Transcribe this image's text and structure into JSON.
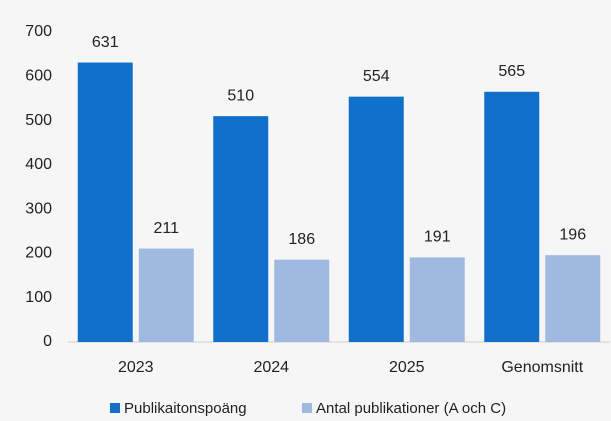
{
  "chart_data": {
    "type": "bar",
    "categories": [
      "2023",
      "2024",
      "2025",
      "Genomsnitt"
    ],
    "series": [
      {
        "name": "Publikaitonspoäng",
        "color": "#1170c9",
        "values": [
          631,
          510,
          554,
          565
        ]
      },
      {
        "name": "Antal publikationer (A och C)",
        "color": "#9fb9e1",
        "values": [
          211,
          186,
          191,
          196
        ]
      }
    ],
    "ylim": [
      0,
      700
    ],
    "yticks": [
      0,
      100,
      200,
      300,
      400,
      500,
      600,
      700
    ],
    "grid": false,
    "legend": "bottom"
  }
}
